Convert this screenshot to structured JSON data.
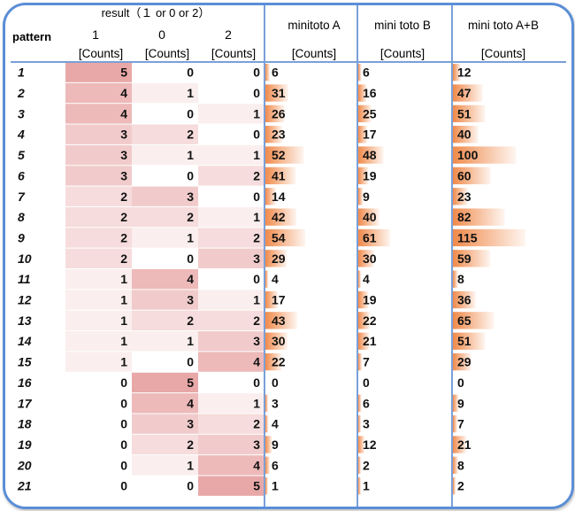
{
  "chart_data": {
    "type": "table",
    "headers": {
      "pattern": "pattern",
      "result_group": "result（１ or 0 or 2）",
      "result_cols": [
        "1",
        "0",
        "2"
      ],
      "minitoto_a": "minitoto A",
      "mini_toto_b": "mini toto B",
      "mini_toto_ab": "mini toto A+B",
      "counts_unit": "[Counts]"
    },
    "rows": [
      {
        "pattern": "1",
        "r1": 5,
        "r0": 0,
        "r2": 0,
        "a": 6,
        "b": 6,
        "ab": 12
      },
      {
        "pattern": "2",
        "r1": 4,
        "r0": 1,
        "r2": 0,
        "a": 31,
        "b": 16,
        "ab": 47
      },
      {
        "pattern": "3",
        "r1": 4,
        "r0": 0,
        "r2": 1,
        "a": 26,
        "b": 25,
        "ab": 51
      },
      {
        "pattern": "4",
        "r1": 3,
        "r0": 2,
        "r2": 0,
        "a": 23,
        "b": 17,
        "ab": 40
      },
      {
        "pattern": "5",
        "r1": 3,
        "r0": 1,
        "r2": 1,
        "a": 52,
        "b": 48,
        "ab": 100
      },
      {
        "pattern": "6",
        "r1": 3,
        "r0": 0,
        "r2": 2,
        "a": 41,
        "b": 19,
        "ab": 60
      },
      {
        "pattern": "7",
        "r1": 2,
        "r0": 3,
        "r2": 0,
        "a": 14,
        "b": 9,
        "ab": 23
      },
      {
        "pattern": "8",
        "r1": 2,
        "r0": 2,
        "r2": 1,
        "a": 42,
        "b": 40,
        "ab": 82
      },
      {
        "pattern": "9",
        "r1": 2,
        "r0": 1,
        "r2": 2,
        "a": 54,
        "b": 61,
        "ab": 115
      },
      {
        "pattern": "10",
        "r1": 2,
        "r0": 0,
        "r2": 3,
        "a": 29,
        "b": 30,
        "ab": 59
      },
      {
        "pattern": "11",
        "r1": 1,
        "r0": 4,
        "r2": 0,
        "a": 4,
        "b": 4,
        "ab": 8
      },
      {
        "pattern": "12",
        "r1": 1,
        "r0": 3,
        "r2": 1,
        "a": 17,
        "b": 19,
        "ab": 36
      },
      {
        "pattern": "13",
        "r1": 1,
        "r0": 2,
        "r2": 2,
        "a": 43,
        "b": 22,
        "ab": 65
      },
      {
        "pattern": "14",
        "r1": 1,
        "r0": 1,
        "r2": 3,
        "a": 30,
        "b": 21,
        "ab": 51
      },
      {
        "pattern": "15",
        "r1": 1,
        "r0": 0,
        "r2": 4,
        "a": 22,
        "b": 7,
        "ab": 29
      },
      {
        "pattern": "16",
        "r1": 0,
        "r0": 5,
        "r2": 0,
        "a": 0,
        "b": 0,
        "ab": 0
      },
      {
        "pattern": "17",
        "r1": 0,
        "r0": 4,
        "r2": 1,
        "a": 3,
        "b": 6,
        "ab": 9
      },
      {
        "pattern": "18",
        "r1": 0,
        "r0": 3,
        "r2": 2,
        "a": 4,
        "b": 3,
        "ab": 7
      },
      {
        "pattern": "19",
        "r1": 0,
        "r0": 2,
        "r2": 3,
        "a": 9,
        "b": 12,
        "ab": 21
      },
      {
        "pattern": "20",
        "r1": 0,
        "r0": 1,
        "r2": 4,
        "a": 6,
        "b": 2,
        "ab": 8
      },
      {
        "pattern": "21",
        "r1": 0,
        "r0": 0,
        "r2": 5,
        "a": 1,
        "b": 1,
        "ab": 2
      }
    ],
    "bar_max": 115
  },
  "colors": {
    "frame": "#5b8ed6",
    "divider": "#7aa0d8",
    "heat_max": "#e8a8a8",
    "bar": "#f08a4b",
    "bar_fade": "#fde6d6",
    "text": "#111111"
  }
}
